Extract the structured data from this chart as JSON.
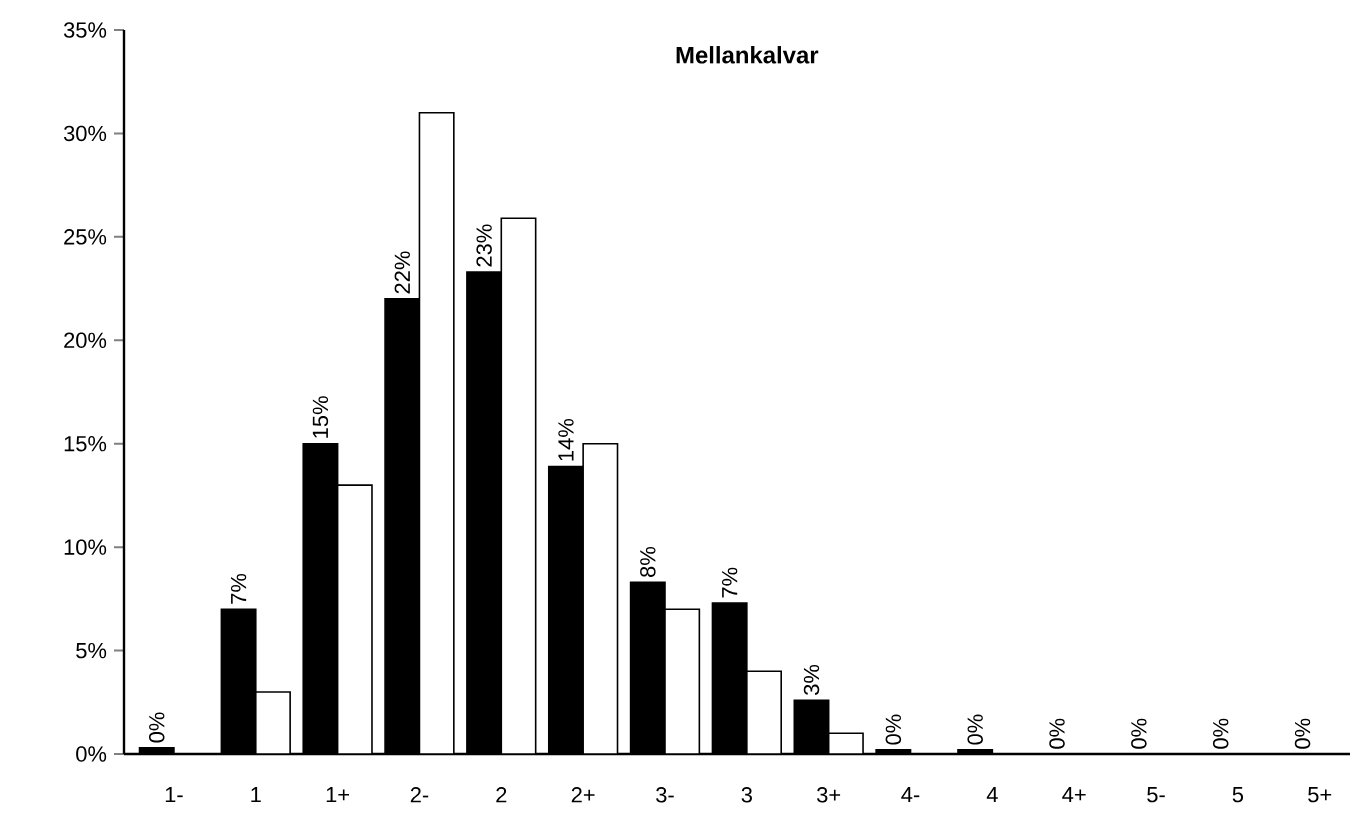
{
  "chart_data": {
    "type": "bar",
    "title": "Mellankalvar",
    "categories": [
      "1-",
      "1",
      "1+",
      "2-",
      "2",
      "2+",
      "3-",
      "3",
      "3+",
      "4-",
      "4",
      "4+",
      "5-",
      "5",
      "5+"
    ],
    "series": [
      {
        "color": "#000000",
        "values": [
          0.3,
          7.0,
          15.0,
          22.0,
          23.3,
          13.9,
          8.3,
          7.3,
          2.6,
          0.2,
          0.2,
          0,
          0,
          0,
          0
        ],
        "value_labels": [
          "0%",
          "7%",
          "15%",
          "22%",
          "23%",
          "14%",
          "8%",
          "7%",
          "3%",
          "0%",
          "0%",
          "0%",
          "0%",
          "0%",
          "0%"
        ]
      },
      {
        "color": "#ffffff",
        "values": [
          0,
          3.0,
          13.0,
          31.0,
          25.9,
          15.0,
          7.0,
          4.0,
          1.0,
          0,
          0,
          0,
          0,
          0,
          0
        ]
      }
    ],
    "ylim": [
      0,
      35
    ],
    "yticks": [
      {
        "value": 0,
        "label": "0%"
      },
      {
        "value": 5,
        "label": "5%"
      },
      {
        "value": 10,
        "label": "10%"
      },
      {
        "value": 15,
        "label": "15%"
      },
      {
        "value": 20,
        "label": "20%"
      },
      {
        "value": 25,
        "label": "25%"
      },
      {
        "value": 30,
        "label": "30%"
      },
      {
        "value": 35,
        "label": "35%"
      }
    ]
  }
}
